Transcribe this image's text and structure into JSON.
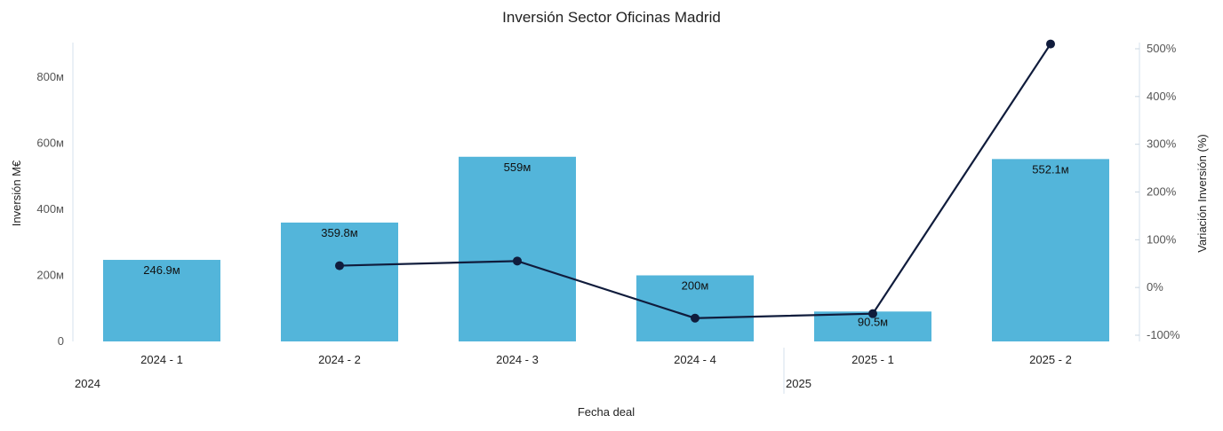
{
  "chart_data": {
    "type": "bar",
    "title": "Inversión Sector Oficinas Madrid",
    "xlabel": "Fecha deal",
    "ylabel": "Inversión M€",
    "y2label": "Variación Inversión (%)",
    "categories": [
      "2024 - 1",
      "2024 - 2",
      "2024 - 3",
      "2024 - 4",
      "2025 - 1",
      "2025 - 2"
    ],
    "groups": [
      {
        "label": "2024",
        "start": 0,
        "end": 3
      },
      {
        "label": "2025",
        "start": 4,
        "end": 5
      }
    ],
    "series": [
      {
        "type": "bar",
        "axis": "left",
        "color": "#53b5da",
        "values": [
          246.9,
          359.8,
          559,
          200,
          90.5,
          552.1
        ],
        "labels": [
          "246.9м",
          "359.8м",
          "559м",
          "200м",
          "90.5м",
          "552.1м"
        ]
      },
      {
        "type": "line",
        "axis": "right",
        "color": "#101c3c",
        "values": [
          null,
          45.7,
          55.4,
          -64.2,
          -54.8,
          510.1
        ]
      }
    ],
    "ylim": [
      0,
      900
    ],
    "y_ticks": [
      0,
      200,
      400,
      600,
      800
    ],
    "y_tick_labels": [
      "0",
      "200м",
      "400м",
      "600м",
      "800м"
    ],
    "y2lim": [
      -100,
      500
    ],
    "y2_ticks": [
      -100,
      0,
      100,
      200,
      300,
      400,
      500
    ],
    "y2_tick_labels": [
      "-100%",
      "0%",
      "100%",
      "200%",
      "300%",
      "400%",
      "500%"
    ],
    "grid": false
  }
}
